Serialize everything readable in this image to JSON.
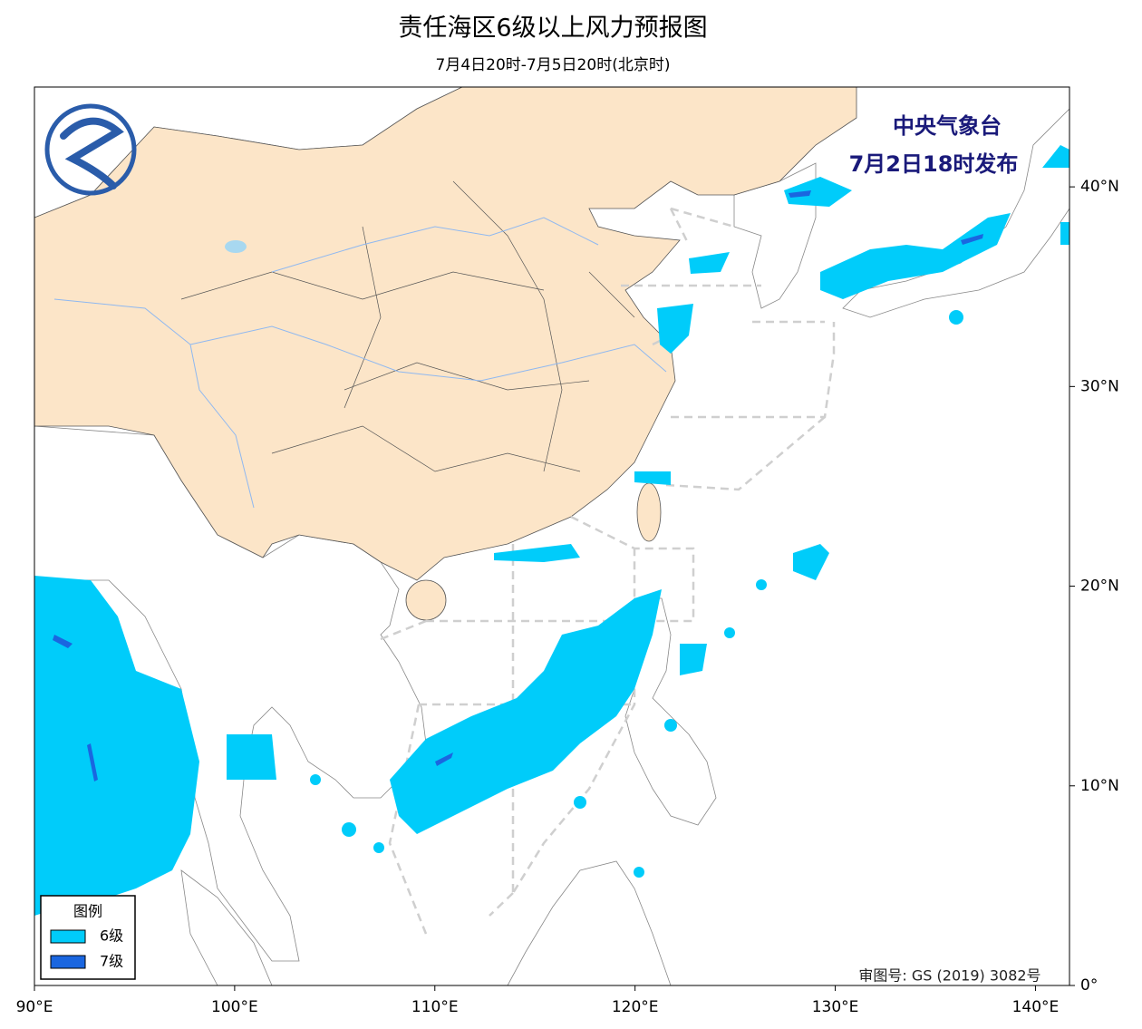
{
  "map": {
    "title": "责任海区6级以上风力预报图",
    "subtitle": "7月4日20时-7月5日20时(北京时)",
    "issuer": "中央气象台",
    "issue_time": "7月2日18时发布",
    "approval_number": "审图号: GS (2019) 3082号",
    "legend": {
      "title": "图例",
      "items": [
        {
          "name": "6级",
          "color": "#00ccfa"
        },
        {
          "name": "7级",
          "color": "#1a66e0"
        }
      ]
    },
    "xlim": [
      90,
      141.7
    ],
    "ylim": [
      0,
      45
    ],
    "xticks": [
      {
        "value": 90,
        "label": "90°E"
      },
      {
        "value": 100,
        "label": "100°E"
      },
      {
        "value": 110,
        "label": "110°E"
      },
      {
        "value": 120,
        "label": "120°E"
      },
      {
        "value": 130,
        "label": "130°E"
      },
      {
        "value": 140,
        "label": "140°E"
      }
    ],
    "yticks": [
      {
        "value": 0,
        "label": "0°"
      },
      {
        "value": 10,
        "label": "10°N"
      },
      {
        "value": 20,
        "label": "20°N"
      },
      {
        "value": 30,
        "label": "30°N"
      },
      {
        "value": 40,
        "label": "40°N"
      }
    ]
  }
}
